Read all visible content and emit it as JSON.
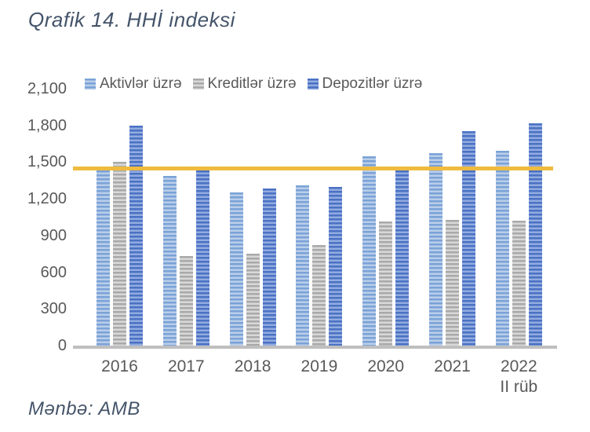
{
  "page": {
    "title": "Qrafik 14. HHİ indeksi",
    "source": "Mənbə: AMB"
  },
  "colors": {
    "title_text": "#44546a",
    "axis_text": "#595959",
    "axis_line": "#bfbfbf",
    "threshold_line": "#efbb3e"
  },
  "chart_data": {
    "type": "bar",
    "title": "Qrafik 14. HHİ indeksi",
    "categories": [
      "2016",
      "2017",
      "2018",
      "2019",
      "2020",
      "2021",
      "2022"
    ],
    "last_category_sublabel": "II rüb",
    "series": [
      {
        "name": "Aktivlər üzrə",
        "values": [
          1435,
          1390,
          1250,
          1310,
          1550,
          1575,
          1590
        ],
        "color_dark": "#7aa2d7",
        "color_light": "#bacee9"
      },
      {
        "name": "Kreditlər üzrə",
        "values": [
          1500,
          730,
          750,
          820,
          1015,
          1025,
          1020
        ],
        "color_dark": "#a9a9a9",
        "color_light": "#d8d8d8"
      },
      {
        "name": "Depozitlər üzrə",
        "values": [
          1800,
          1430,
          1285,
          1300,
          1430,
          1755,
          1820
        ],
        "color_dark": "#4a72c4",
        "color_light": "#93abdf"
      }
    ],
    "threshold_line": {
      "value": 1450,
      "color": "#efbb3e"
    },
    "y_axis": {
      "min": 0,
      "max": 2100,
      "step": 300,
      "tick_labels": [
        "0",
        "300",
        "600",
        "900",
        "1,200",
        "1,500",
        "1,800",
        "2,100"
      ]
    },
    "legend_position": "top",
    "grid": false,
    "source": "Mənbə: AMB"
  }
}
